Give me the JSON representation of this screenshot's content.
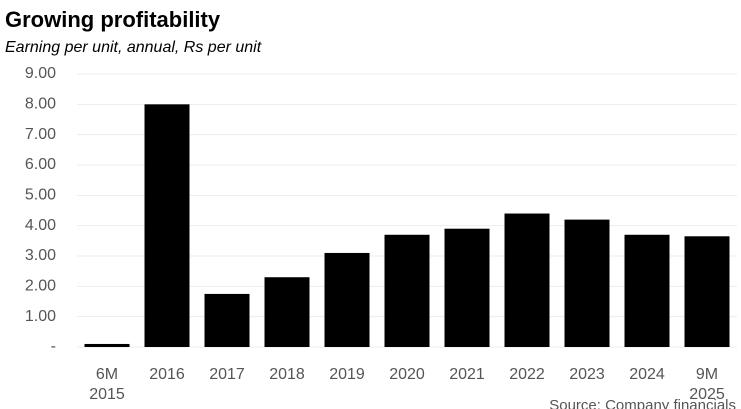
{
  "chart_data": {
    "type": "bar",
    "title": "Growing profitability",
    "subtitle": "Earning per unit, annual, Rs per unit",
    "source": "Source: Company financials",
    "categories": [
      "6M 2015",
      "2016",
      "2017",
      "2018",
      "2019",
      "2020",
      "2021",
      "2022",
      "2023",
      "2024",
      "9M 2025"
    ],
    "values": [
      0.1,
      8.0,
      1.75,
      2.3,
      3.1,
      3.7,
      3.9,
      4.4,
      4.2,
      3.7,
      3.65
    ],
    "color": "#000000",
    "ylim": [
      0,
      9
    ],
    "yticks": [
      {
        "value": 0,
        "label": "-"
      },
      {
        "value": 1,
        "label": "1.00"
      },
      {
        "value": 2,
        "label": "2.00"
      },
      {
        "value": 3,
        "label": "3.00"
      },
      {
        "value": 4,
        "label": "4.00"
      },
      {
        "value": 5,
        "label": "5.00"
      },
      {
        "value": 6,
        "label": "6.00"
      },
      {
        "value": 7,
        "label": "7.00"
      },
      {
        "value": 8,
        "label": "8.00"
      },
      {
        "value": 9,
        "label": "9.00"
      }
    ],
    "grid": true
  }
}
